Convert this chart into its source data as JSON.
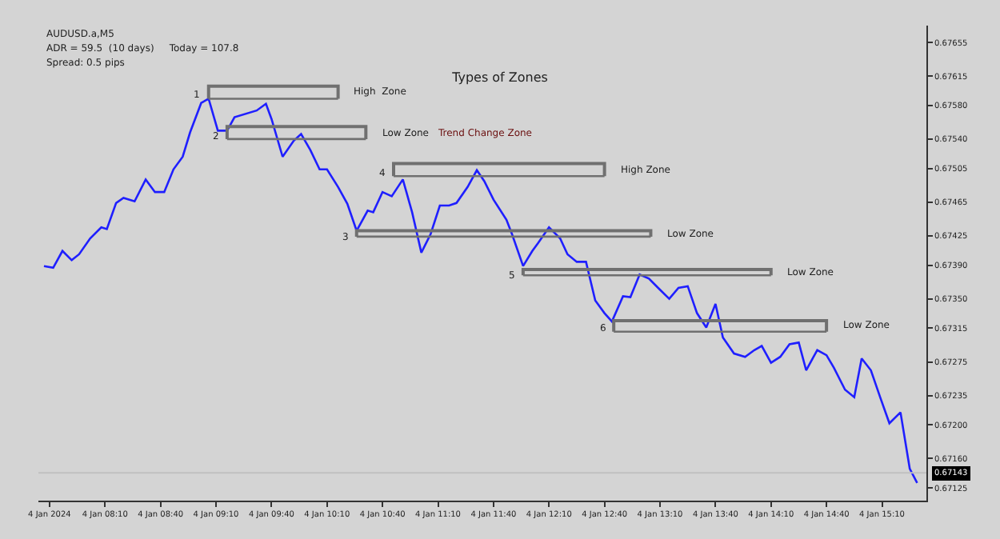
{
  "chart_data": {
    "type": "line",
    "title": "Types of Zones",
    "annotations": [
      "AUDUSD.a,M5",
      "ADR = 59.5  (10 days)     Today = 107.8",
      "Spread: 0.5 pips",
      "1",
      "2",
      "Trend Change Zone",
      "4",
      "3",
      "5",
      "6"
    ],
    "series": [
      {
        "color": "#1f1fff",
        "x": [
          "2024-01-04T07:37",
          "2024-01-04T07:42",
          "2024-01-04T07:47",
          "2024-01-04T07:52",
          "2024-01-04T07:56",
          "2024-01-04T08:02",
          "2024-01-04T08:08",
          "2024-01-04T08:11",
          "2024-01-04T08:16",
          "2024-01-04T08:20",
          "2024-01-04T08:26",
          "2024-01-04T08:32",
          "2024-01-04T08:37",
          "2024-01-04T08:42",
          "2024-01-04T08:47",
          "2024-01-04T08:52",
          "2024-01-04T08:56",
          "2024-01-04T09:02",
          "2024-01-04T09:06",
          "2024-01-04T09:11",
          "2024-01-04T09:16",
          "2024-01-04T09:20",
          "2024-01-04T09:32",
          "2024-01-04T09:37",
          "2024-01-04T09:40",
          "2024-01-04T09:46",
          "2024-01-04T09:52",
          "2024-01-04T09:56",
          "2024-01-04T10:01",
          "2024-01-04T10:06",
          "2024-01-04T10:10",
          "2024-01-04T10:16",
          "2024-01-04T10:21",
          "2024-01-04T10:26",
          "2024-01-04T10:32",
          "2024-01-04T10:35",
          "2024-01-04T10:40",
          "2024-01-04T10:45",
          "2024-01-04T10:51",
          "2024-01-04T10:56",
          "2024-01-04T11:01",
          "2024-01-04T11:06",
          "2024-01-04T11:11",
          "2024-01-04T11:16",
          "2024-01-04T11:20",
          "2024-01-04T11:26",
          "2024-01-04T11:31",
          "2024-01-04T11:35",
          "2024-01-04T11:40",
          "2024-01-04T11:47",
          "2024-01-04T11:50",
          "2024-01-04T11:56",
          "2024-01-04T12:01",
          "2024-01-04T12:04",
          "2024-01-04T12:10",
          "2024-01-04T12:16",
          "2024-01-04T12:20",
          "2024-01-04T12:25",
          "2024-01-04T12:30",
          "2024-01-04T12:35",
          "2024-01-04T12:40",
          "2024-01-04T12:44",
          "2024-01-04T12:50",
          "2024-01-04T12:54",
          "2024-01-04T12:59",
          "2024-01-04T13:04",
          "2024-01-04T13:09",
          "2024-01-04T13:15",
          "2024-01-04T13:20",
          "2024-01-04T13:25",
          "2024-01-04T13:30",
          "2024-01-04T13:35",
          "2024-01-04T13:40",
          "2024-01-04T13:44",
          "2024-01-04T13:50",
          "2024-01-04T13:56",
          "2024-01-04T14:01",
          "2024-01-04T14:05",
          "2024-01-04T14:10",
          "2024-01-04T14:15",
          "2024-01-04T14:20",
          "2024-01-04T14:25",
          "2024-01-04T14:29",
          "2024-01-04T14:35",
          "2024-01-04T14:40",
          "2024-01-04T14:44",
          "2024-01-04T14:50",
          "2024-01-04T14:55",
          "2024-01-04T14:59",
          "2024-01-04T15:04",
          "2024-01-04T15:09",
          "2024-01-04T15:14",
          "2024-01-04T15:20",
          "2024-01-04T15:25",
          "2024-01-04T15:29"
        ],
        "values": [
          0.67389,
          0.67387,
          0.67407,
          0.67396,
          0.67403,
          0.67422,
          0.67435,
          0.67433,
          0.67464,
          0.6747,
          0.67466,
          0.67492,
          0.67477,
          0.67477,
          0.67504,
          0.67519,
          0.67548,
          0.67583,
          0.67588,
          0.6755,
          0.6755,
          0.67566,
          0.67574,
          0.67582,
          0.67564,
          0.67519,
          0.67538,
          0.67546,
          0.67527,
          0.67504,
          0.67504,
          0.67483,
          0.67463,
          0.67431,
          0.67455,
          0.67453,
          0.67477,
          0.67472,
          0.67492,
          0.67453,
          0.67405,
          0.67427,
          0.67461,
          0.67461,
          0.67464,
          0.67483,
          0.67503,
          0.6749,
          0.67468,
          0.67444,
          0.67427,
          0.67389,
          0.67407,
          0.67416,
          0.67435,
          0.67422,
          0.67403,
          0.67394,
          0.67394,
          0.67348,
          0.67333,
          0.67323,
          0.67353,
          0.67352,
          0.67379,
          0.67374,
          0.67363,
          0.6735,
          0.67363,
          0.67365,
          0.67333,
          0.67316,
          0.67344,
          0.67304,
          0.67285,
          0.67281,
          0.67289,
          0.67294,
          0.67274,
          0.67281,
          0.67296,
          0.67298,
          0.67265,
          0.67289,
          0.67283,
          0.67268,
          0.67242,
          0.67233,
          0.67279,
          0.67265,
          0.67233,
          0.67202,
          0.67215,
          0.67148,
          0.67131
        ]
      },
      {
        "name": "High  Zone",
        "color": "#707070",
        "x": [
          "2024-01-04T09:06",
          "2024-01-04T09:06",
          "2024-01-04T10:16",
          "2024-01-04T10:16"
        ],
        "values": [
          0.67588,
          0.67603,
          0.67603,
          0.67588
        ]
      },
      {
        "color": "#707070",
        "x": [
          "2024-01-04T09:06",
          "2024-01-04T10:16"
        ],
        "values": [
          0.67588,
          0.67588
        ]
      },
      {
        "name": "Low Zone",
        "color": "#707070",
        "x": [
          "2024-01-04T09:16",
          "2024-01-04T09:16",
          "2024-01-04T10:31",
          "2024-01-04T10:31"
        ],
        "values": [
          0.6754,
          0.67555,
          0.67555,
          0.6754
        ]
      },
      {
        "color": "#707070",
        "x": [
          "2024-01-04T09:16",
          "2024-01-04T10:31"
        ],
        "values": [
          0.6754,
          0.6754
        ]
      },
      {
        "name": "High Zone",
        "color": "#707070",
        "x": [
          "2024-01-04T10:46",
          "2024-01-04T10:46",
          "2024-01-04T12:40",
          "2024-01-04T12:40"
        ],
        "values": [
          0.67496,
          0.67511,
          0.67511,
          0.67496
        ]
      },
      {
        "color": "#707070",
        "x": [
          "2024-01-04T10:46",
          "2024-01-04T12:40"
        ],
        "values": [
          0.67496,
          0.67496
        ]
      },
      {
        "name": "Low Zone",
        "color": "#707070",
        "x": [
          "2024-01-04T10:26",
          "2024-01-04T10:26",
          "2024-01-04T13:05",
          "2024-01-04T13:05"
        ],
        "values": [
          0.67424,
          0.67431,
          0.67431,
          0.67424
        ]
      },
      {
        "color": "#707070",
        "x": [
          "2024-01-04T10:26",
          "2024-01-04T13:05"
        ],
        "values": [
          0.67424,
          0.67424
        ]
      },
      {
        "name": "Low Zone",
        "color": "#707070",
        "x": [
          "2024-01-04T11:56",
          "2024-01-04T11:56",
          "2024-01-04T14:10",
          "2024-01-04T14:10"
        ],
        "values": [
          0.67378,
          0.67385,
          0.67385,
          0.67378
        ]
      },
      {
        "color": "#707070",
        "x": [
          "2024-01-04T11:56",
          "2024-01-04T14:10"
        ],
        "values": [
          0.67378,
          0.67378
        ]
      },
      {
        "name": "Low Zone",
        "color": "#707070",
        "x": [
          "2024-01-04T12:45",
          "2024-01-04T12:45",
          "2024-01-04T14:40",
          "2024-01-04T14:40"
        ],
        "values": [
          0.67311,
          0.67324,
          0.67324,
          0.67311
        ]
      },
      {
        "color": "#707070",
        "x": [
          "2024-01-04T12:45",
          "2024-01-04T14:40"
        ],
        "values": [
          0.67311,
          0.67311
        ]
      }
    ],
    "xlim": [
      "2024-01-04T07:34",
      "2024-01-04T15:34"
    ],
    "xticks": [
      {
        "value": "2024-01-04T07:40",
        "label": "4 Jan 2024"
      },
      {
        "value": "2024-01-04T08:10",
        "label": "4 Jan 08:10"
      },
      {
        "value": "2024-01-04T08:40",
        "label": "4 Jan 08:40"
      },
      {
        "value": "2024-01-04T09:10",
        "label": "4 Jan 09:10"
      },
      {
        "value": "2024-01-04T09:40",
        "label": "4 Jan 09:40"
      },
      {
        "value": "2024-01-04T10:10",
        "label": "4 Jan 10:10"
      },
      {
        "value": "2024-01-04T10:40",
        "label": "4 Jan 10:40"
      },
      {
        "value": "2024-01-04T11:10",
        "label": "4 Jan 11:10"
      },
      {
        "value": "2024-01-04T11:40",
        "label": "4 Jan 11:40"
      },
      {
        "value": "2024-01-04T12:10",
        "label": "4 Jan 12:10"
      },
      {
        "value": "2024-01-04T12:40",
        "label": "4 Jan 12:40"
      },
      {
        "value": "2024-01-04T13:10",
        "label": "4 Jan 13:10"
      },
      {
        "value": "2024-01-04T13:40",
        "label": "4 Jan 13:40"
      },
      {
        "value": "2024-01-04T14:10",
        "label": "4 Jan 14:10"
      },
      {
        "value": "2024-01-04T14:40",
        "label": "4 Jan 14:40"
      },
      {
        "value": "2024-01-04T15:10",
        "label": "4 Jan 15:10"
      }
    ],
    "ylim": [
      0.6711,
      0.67675
    ],
    "yticks": [
      {
        "value": 0.67655,
        "label": "0.67655"
      },
      {
        "value": 0.67615,
        "label": "0.67615"
      },
      {
        "value": 0.6758,
        "label": "0.67580"
      },
      {
        "value": 0.6754,
        "label": "0.67540"
      },
      {
        "value": 0.67505,
        "label": "0.67505"
      },
      {
        "value": 0.67465,
        "label": "0.67465"
      },
      {
        "value": 0.67425,
        "label": "0.67425"
      },
      {
        "value": 0.6739,
        "label": "0.67390"
      },
      {
        "value": 0.6735,
        "label": "0.67350"
      },
      {
        "value": 0.67315,
        "label": "0.67315"
      },
      {
        "value": 0.67275,
        "label": "0.67275"
      },
      {
        "value": 0.67235,
        "label": "0.67235"
      },
      {
        "value": 0.672,
        "label": "0.67200"
      },
      {
        "value": 0.6716,
        "label": "0.67160"
      },
      {
        "value": 0.67125,
        "label": "0.67125"
      }
    ],
    "ref_lines": [
      {
        "axis": "y",
        "value": 0.67143,
        "label": "0.67143",
        "color": "#c0c0c0"
      }
    ],
    "grid": false,
    "legend": false,
    "marker": "none",
    "line_style": "solid"
  }
}
